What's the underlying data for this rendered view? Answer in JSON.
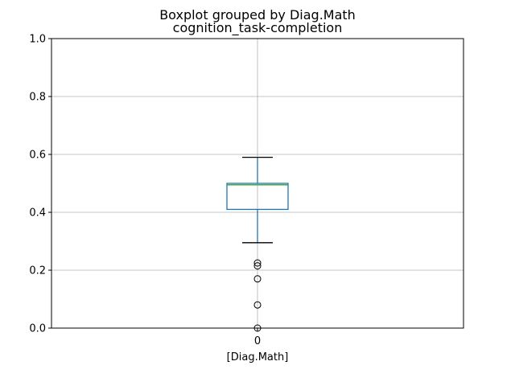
{
  "chart_data": {
    "type": "boxplot",
    "title": "Boxplot grouped by Diag.Math",
    "subtitle": "cognition_task-completion",
    "xlabel": "[Diag.Math]",
    "ylabel": "",
    "ylim": [
      0,
      1
    ],
    "yticks": [
      "0.0",
      "0.2",
      "0.4",
      "0.6",
      "0.8",
      "1.0"
    ],
    "grid": true,
    "categories": [
      "0"
    ],
    "boxes": [
      {
        "category": "0",
        "whisker_low": 0.295,
        "q1": 0.41,
        "median": 0.495,
        "q3": 0.5,
        "whisker_high": 0.59,
        "outliers": [
          0.225,
          0.215,
          0.17,
          0.08,
          0.0
        ]
      }
    ],
    "colors": {
      "box": "#1f77b4",
      "median": "#2ca02c",
      "whisker": "#1f77b4",
      "cap": "#000000",
      "grid": "#b0b0b0"
    }
  }
}
